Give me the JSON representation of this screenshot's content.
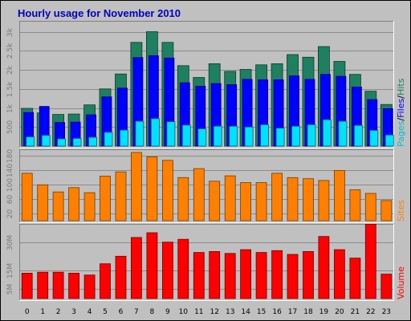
{
  "chart_data": {
    "type": "bar",
    "title": "Hourly usage for November 2010",
    "categories": [
      "0",
      "1",
      "2",
      "3",
      "4",
      "5",
      "6",
      "7",
      "8",
      "9",
      "10",
      "11",
      "12",
      "13",
      "14",
      "15",
      "16",
      "17",
      "18",
      "19",
      "20",
      "21",
      "22",
      "23"
    ],
    "panels": [
      {
        "id": "hits",
        "ylim": [
          0,
          3200
        ],
        "yticks": [
          500,
          1000,
          1500,
          2000,
          2500,
          3000
        ],
        "ytick_labels": [
          "500",
          "1k",
          "1.5k",
          "2k",
          "2.5k",
          "3k"
        ],
        "series": [
          {
            "name": "Hits",
            "color": "#1e8060",
            "values": [
              990,
              870,
              830,
              840,
              1080,
              1500,
              1890,
              2720,
              3000,
              2720,
              2110,
              1800,
              2160,
              1960,
              2010,
              2130,
              2160,
              2400,
              2330,
              2610,
              2220,
              1880,
              1440,
              1090
            ]
          },
          {
            "name": "Files",
            "color": "#0000ff",
            "values": [
              880,
              1040,
              620,
              630,
              820,
              1290,
              1520,
              2320,
              2370,
              2310,
              1660,
              1570,
              1640,
              1610,
              1750,
              1740,
              1740,
              1840,
              1750,
              1880,
              1830,
              1550,
              1220,
              980
            ]
          },
          {
            "name": "Pages",
            "color": "#00e0ff",
            "values": [
              240,
              280,
              190,
              200,
              230,
              360,
              420,
              650,
              720,
              640,
              550,
              450,
              520,
              520,
              500,
              560,
              470,
              520,
              560,
              690,
              650,
              540,
              410,
              290
            ]
          }
        ],
        "side_label": [
          {
            "text": "Pages",
            "color": "#00c0d0"
          },
          {
            "text": "/",
            "color": "#000000"
          },
          {
            "text": "Files",
            "color": "#0000ff"
          },
          {
            "text": "/",
            "color": "#000000"
          },
          {
            "text": "Hits",
            "color": "#1e8060"
          }
        ]
      },
      {
        "id": "sites",
        "ylim": [
          0,
          190
        ],
        "yticks": [
          20,
          60,
          100,
          140,
          180
        ],
        "ytick_labels": [
          "20",
          "60",
          "100",
          "140",
          "180"
        ],
        "series": [
          {
            "name": "Sites",
            "color": "#ff8000",
            "values": [
              132,
              100,
              80,
              92,
              78,
              124,
              136,
              190,
              178,
              168,
              120,
              145,
              110,
              125,
              106,
              106,
              132,
              120,
              117,
              112,
              140,
              86,
              76,
              56
            ]
          }
        ],
        "side_label": [
          {
            "text": "Sites",
            "color": "#ff8000"
          }
        ]
      },
      {
        "id": "volume",
        "ylim": [
          0,
          38
        ],
        "yticks": [
          5,
          15,
          30
        ],
        "ytick_labels": [
          "5M",
          "15M",
          "30M"
        ],
        "series": [
          {
            "name": "Volume",
            "color": "#ff0000",
            "values": [
              13.5,
              14.0,
              14.0,
              13.5,
              12.5,
              18.5,
              22.5,
              32.5,
              35.0,
              30.0,
              31.5,
              24.5,
              25.0,
              24.0,
              26.0,
              24.5,
              25.5,
              23.5,
              25.0,
              33.0,
              26.0,
              21.5,
              39.5,
              13.0
            ]
          }
        ],
        "side_label": [
          {
            "text": "Volume",
            "color": "#ff0000"
          }
        ]
      }
    ]
  }
}
